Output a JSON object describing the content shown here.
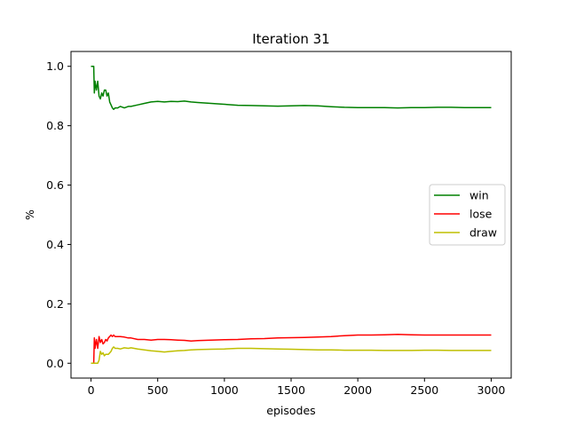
{
  "chart_data": {
    "type": "line",
    "title": "Iteration 31",
    "xlabel": "episodes",
    "ylabel": "%",
    "xlim": [
      -150,
      3150
    ],
    "ylim": [
      -0.05,
      1.05
    ],
    "xticks": [
      0,
      500,
      1000,
      1500,
      2000,
      2500,
      3000
    ],
    "yticks": [
      0.0,
      0.2,
      0.4,
      0.6,
      0.8,
      1.0
    ],
    "xtick_labels": [
      "0",
      "500",
      "1000",
      "1500",
      "2000",
      "2500",
      "3000"
    ],
    "ytick_labels": [
      "0.0",
      "0.2",
      "0.4",
      "0.6",
      "0.8",
      "1.0"
    ],
    "grid": false,
    "legend_position": "center-right",
    "series": [
      {
        "name": "win",
        "color": "#008000",
        "x": [
          0,
          10,
          20,
          25,
          30,
          40,
          50,
          60,
          70,
          80,
          90,
          100,
          110,
          120,
          130,
          140,
          150,
          160,
          170,
          180,
          200,
          220,
          250,
          280,
          300,
          350,
          400,
          450,
          500,
          550,
          600,
          650,
          700,
          750,
          800,
          900,
          1000,
          1100,
          1200,
          1300,
          1400,
          1500,
          1600,
          1700,
          1800,
          1900,
          2000,
          2100,
          2200,
          2300,
          2400,
          2500,
          2600,
          2700,
          2800,
          2900,
          3000
        ],
        "y": [
          1.0,
          1.0,
          1.0,
          0.91,
          0.95,
          0.92,
          0.95,
          0.9,
          0.89,
          0.91,
          0.9,
          0.92,
          0.92,
          0.9,
          0.91,
          0.88,
          0.87,
          0.86,
          0.855,
          0.86,
          0.86,
          0.865,
          0.86,
          0.865,
          0.865,
          0.87,
          0.875,
          0.88,
          0.882,
          0.88,
          0.882,
          0.881,
          0.883,
          0.88,
          0.878,
          0.875,
          0.872,
          0.869,
          0.868,
          0.867,
          0.866,
          0.867,
          0.868,
          0.867,
          0.864,
          0.862,
          0.861,
          0.861,
          0.861,
          0.86,
          0.861,
          0.861,
          0.862,
          0.862,
          0.861,
          0.861,
          0.861
        ]
      },
      {
        "name": "lose",
        "color": "#ff0000",
        "x": [
          0,
          10,
          20,
          25,
          30,
          40,
          50,
          60,
          70,
          80,
          90,
          100,
          110,
          120,
          130,
          140,
          150,
          160,
          170,
          180,
          200,
          220,
          250,
          280,
          300,
          350,
          400,
          450,
          500,
          550,
          600,
          650,
          700,
          750,
          800,
          900,
          1000,
          1100,
          1200,
          1300,
          1400,
          1500,
          1600,
          1700,
          1800,
          1900,
          2000,
          2100,
          2200,
          2300,
          2400,
          2500,
          2600,
          2700,
          2800,
          2900,
          3000
        ],
        "y": [
          0.0,
          0.0,
          0.0,
          0.085,
          0.05,
          0.08,
          0.05,
          0.09,
          0.07,
          0.08,
          0.065,
          0.07,
          0.08,
          0.075,
          0.085,
          0.09,
          0.095,
          0.09,
          0.095,
          0.09,
          0.09,
          0.09,
          0.088,
          0.085,
          0.085,
          0.08,
          0.08,
          0.078,
          0.08,
          0.08,
          0.079,
          0.078,
          0.077,
          0.075,
          0.076,
          0.078,
          0.079,
          0.08,
          0.082,
          0.083,
          0.085,
          0.086,
          0.087,
          0.088,
          0.09,
          0.093,
          0.095,
          0.095,
          0.096,
          0.097,
          0.096,
          0.095,
          0.095,
          0.095,
          0.095,
          0.095,
          0.095
        ]
      },
      {
        "name": "draw",
        "color": "#bfbf00",
        "x": [
          0,
          10,
          20,
          25,
          30,
          40,
          50,
          60,
          70,
          80,
          90,
          100,
          110,
          120,
          130,
          140,
          150,
          160,
          170,
          180,
          200,
          220,
          250,
          280,
          300,
          350,
          400,
          450,
          500,
          550,
          600,
          650,
          700,
          750,
          800,
          900,
          1000,
          1100,
          1200,
          1300,
          1400,
          1500,
          1600,
          1700,
          1800,
          1900,
          2000,
          2100,
          2200,
          2300,
          2400,
          2500,
          2600,
          2700,
          2800,
          2900,
          3000
        ],
        "y": [
          0.0,
          0.0,
          0.0,
          0.0,
          0.0,
          0.0,
          0.0,
          0.01,
          0.04,
          0.03,
          0.035,
          0.025,
          0.03,
          0.03,
          0.03,
          0.035,
          0.04,
          0.05,
          0.055,
          0.05,
          0.05,
          0.048,
          0.052,
          0.05,
          0.052,
          0.048,
          0.045,
          0.042,
          0.04,
          0.038,
          0.04,
          0.042,
          0.043,
          0.045,
          0.046,
          0.047,
          0.048,
          0.05,
          0.05,
          0.049,
          0.048,
          0.047,
          0.046,
          0.045,
          0.045,
          0.044,
          0.044,
          0.044,
          0.043,
          0.043,
          0.043,
          0.044,
          0.044,
          0.043,
          0.043,
          0.043,
          0.043
        ]
      }
    ]
  }
}
